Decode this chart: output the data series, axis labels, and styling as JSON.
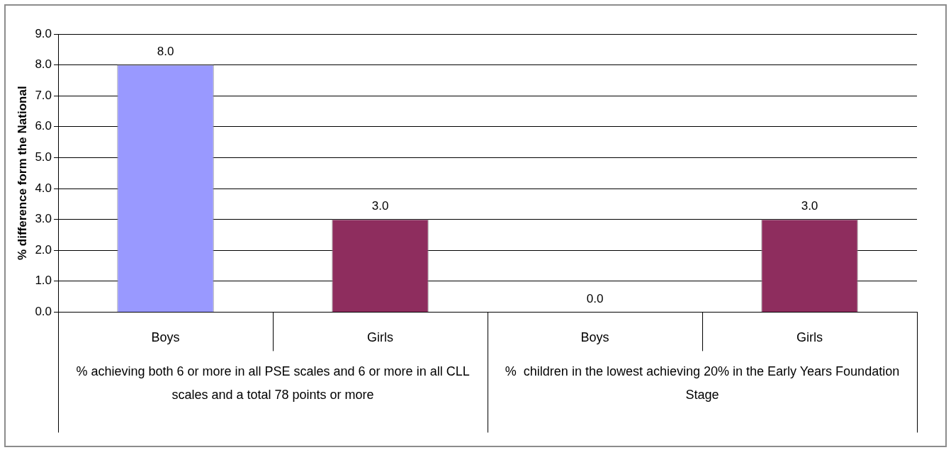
{
  "chart_data": {
    "type": "bar",
    "ylabel": "% difference form the National",
    "categories": [
      "Boys",
      "Girls",
      "Boys",
      "Girls"
    ],
    "values": [
      8.0,
      3.0,
      0.0,
      3.0
    ],
    "colors": [
      "#9999ff",
      "#8e2d5e",
      "#8e2d5e",
      "#8e2d5e"
    ],
    "value_labels": [
      "8.0",
      "3.0",
      "0.0",
      "3.0"
    ],
    "ylim": [
      0,
      9
    ],
    "yticks": [
      {
        "value": 0,
        "label": "0.0"
      },
      {
        "value": 1,
        "label": "1.0"
      },
      {
        "value": 2,
        "label": "2.0"
      },
      {
        "value": 3,
        "label": "3.0"
      },
      {
        "value": 4,
        "label": "4.0"
      },
      {
        "value": 5,
        "label": "5.0"
      },
      {
        "value": 6,
        "label": "6.0"
      },
      {
        "value": 7,
        "label": "7.0"
      },
      {
        "value": 8,
        "label": "8.0"
      },
      {
        "value": 9,
        "label": "9.0"
      }
    ],
    "grid": "y",
    "legend": false,
    "annotations": [
      "% achieving both 6 or more in all PSE scales and 6 or more in all CLL scales and a total 78 points or more",
      "%  children in the lowest achieving 20% in the Early Years Foundation Stage"
    ]
  }
}
